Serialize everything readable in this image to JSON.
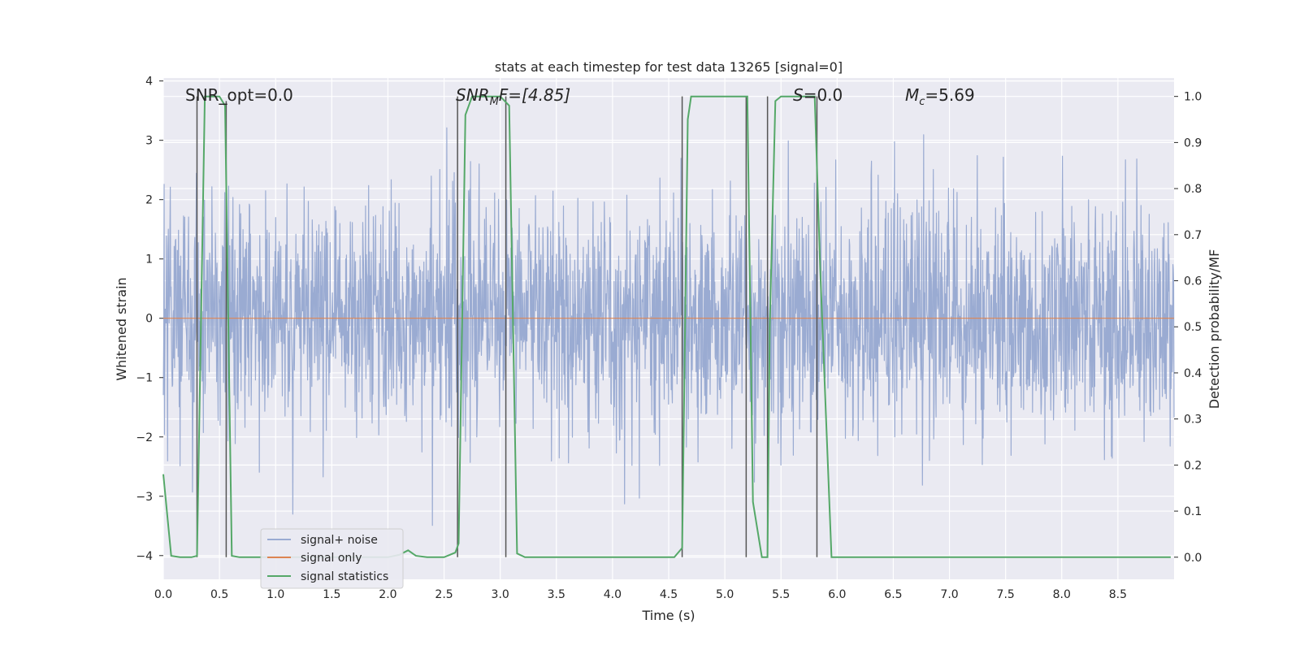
{
  "chart_data": {
    "type": "line",
    "title": "stats at each timestep for test data 13265 [signal=0]",
    "xlabel": "Time (s)",
    "ylabel": "Whitened strain",
    "y2label": "Detection probability/MF",
    "xlim": [
      0,
      9
    ],
    "ylim": [
      -4.4,
      4.05
    ],
    "y2lim": [
      -0.048,
      1.04
    ],
    "x_ticks": [
      0.0,
      0.5,
      1.0,
      1.5,
      2.0,
      2.5,
      3.0,
      3.5,
      4.0,
      4.5,
      5.0,
      5.5,
      6.0,
      6.5,
      7.0,
      7.5,
      8.0,
      8.5
    ],
    "x_tick_labels": [
      "0.0",
      "0.5",
      "1.0",
      "1.5",
      "2.0",
      "2.5",
      "3.0",
      "3.5",
      "4.0",
      "4.5",
      "5.0",
      "5.5",
      "6.0",
      "6.5",
      "7.0",
      "7.5",
      "8.0",
      "8.5"
    ],
    "y_ticks": [
      4,
      3,
      2,
      1,
      0,
      -1,
      -2,
      -3,
      -4
    ],
    "y_tick_labels": [
      "4",
      "3",
      "2",
      "1",
      "0",
      "−1",
      "−2",
      "−3",
      "−4"
    ],
    "y2_ticks": [
      1.0,
      0.9,
      0.8,
      0.7,
      0.6,
      0.5,
      0.4,
      0.3,
      0.2,
      0.1,
      0.0
    ],
    "y2_tick_labels": [
      "1.0",
      "0.9",
      "0.8",
      "0.7",
      "0.6",
      "0.5",
      "0.4",
      "0.3",
      "0.2",
      "0.1",
      "0.0"
    ],
    "grid": true,
    "legend_location": "lower-left",
    "annotations": [
      {
        "text": "SNR_opt=0.0"
      },
      {
        "text_main": "SNR",
        "sub": "M",
        "rest": "F=[4.85]"
      },
      {
        "text_main": "S",
        "sub": "",
        "rest": "=0.0"
      },
      {
        "text_main": "M",
        "sub": "c",
        "rest": "=5.69"
      }
    ],
    "series": [
      {
        "name": "signal+ noise",
        "color": "#9aabd2",
        "axis": "left",
        "kind": "noise",
        "amplitude_range": [
          -3.75,
          3.65
        ]
      },
      {
        "name": "signal only",
        "color": "#dd8452",
        "axis": "left",
        "x": [
          0,
          9
        ],
        "y": [
          0,
          0
        ]
      },
      {
        "name": "signal statistics",
        "color": "#55a868",
        "axis": "right",
        "x": [
          0.0,
          0.07,
          0.15,
          0.25,
          0.3,
          0.37,
          0.5,
          0.55,
          0.61,
          0.68,
          0.8,
          1.2,
          1.6,
          2.0,
          2.1,
          2.18,
          2.25,
          2.35,
          2.5,
          2.6,
          2.63,
          2.69,
          2.75,
          2.8,
          3.0,
          3.08,
          3.15,
          3.22,
          3.4,
          4.0,
          4.4,
          4.55,
          4.62,
          4.67,
          4.7,
          4.8,
          5.0,
          5.2,
          5.25,
          5.33,
          5.38,
          5.4,
          5.45,
          5.5,
          5.8,
          5.85,
          5.95,
          6.2,
          7.0,
          8.0,
          8.97
        ],
        "y": [
          0.18,
          0.003,
          0.0,
          0.0,
          0.003,
          1.0,
          1.0,
          0.98,
          0.003,
          0.0,
          0.0,
          0.0,
          0.0,
          0.0,
          0.005,
          0.015,
          0.003,
          0.0,
          0.0,
          0.01,
          0.03,
          0.96,
          1.0,
          1.0,
          1.0,
          0.98,
          0.008,
          0.0,
          0.0,
          0.0,
          0.0,
          0.0,
          0.02,
          0.95,
          1.0,
          1.0,
          1.0,
          1.0,
          0.12,
          0.0,
          0.0,
          0.5,
          0.99,
          1.0,
          1.0,
          0.62,
          0.0,
          0.0,
          0.0,
          0.0,
          0.0
        ]
      }
    ],
    "vertical_markers": [
      {
        "x": 0.3,
        "y_top": 1.0,
        "y_bottom": 0.0
      },
      {
        "x": 0.56,
        "y_top": 0.99,
        "y_bottom": 0.0
      },
      {
        "x": 2.62,
        "y_top": 1.0,
        "y_bottom": 0.0
      },
      {
        "x": 3.05,
        "y_top": 1.0,
        "y_bottom": 0.0
      },
      {
        "x": 4.62,
        "y_top": 1.0,
        "y_bottom": 0.0
      },
      {
        "x": 5.19,
        "y_top": 1.0,
        "y_bottom": 0.0
      },
      {
        "x": 5.38,
        "y_top": 1.0,
        "y_bottom": 0.0
      },
      {
        "x": 5.82,
        "y_top": 1.0,
        "y_bottom": 0.0
      }
    ]
  },
  "legend": {
    "items": [
      {
        "label": "signal+ noise",
        "color": "#9aabd2"
      },
      {
        "label": "signal only",
        "color": "#dd8452"
      },
      {
        "label": "signal statistics",
        "color": "#55a868"
      }
    ]
  },
  "colors": {
    "axes_bg": "#eaeaf2",
    "grid": "#ffffff",
    "marker": "#555555"
  }
}
